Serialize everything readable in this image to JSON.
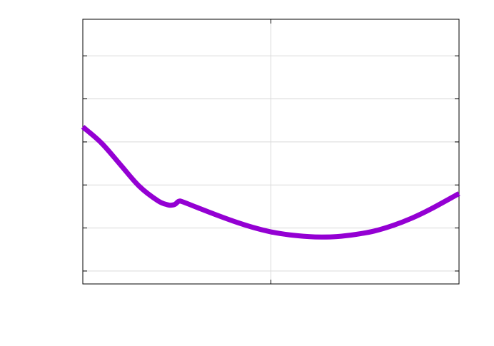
{
  "chart_data": {
    "type": "line",
    "title": "",
    "xlabel": "",
    "ylabel": "",
    "xlim": [
      0,
      2
    ],
    "ylim": [
      0,
      6.15
    ],
    "grid": true,
    "x_grid": [
      1
    ],
    "y_grid": [
      0.3,
      1.3,
      2.3,
      3.3,
      4.3,
      5.3
    ],
    "colors": {
      "series": "#9400d3",
      "grid": "#d9d9d9",
      "axes": "#000000"
    },
    "series": [
      {
        "x": [
          0,
          0.1,
          0.2,
          0.3,
          0.4,
          0.45,
          0.47,
          0.49,
          0.51,
          0.53,
          0.6,
          0.7,
          0.8,
          0.9,
          1.0,
          1.1,
          1.2,
          1.27,
          1.35,
          1.45,
          1.55,
          1.65,
          1.75,
          1.85,
          2.0
        ],
        "values": [
          3.65,
          3.27,
          2.77,
          2.27,
          1.93,
          1.84,
          1.83,
          1.85,
          1.92,
          1.91,
          1.79,
          1.62,
          1.46,
          1.32,
          1.21,
          1.14,
          1.1,
          1.09,
          1.1,
          1.15,
          1.23,
          1.36,
          1.53,
          1.74,
          2.1
        ]
      }
    ]
  }
}
